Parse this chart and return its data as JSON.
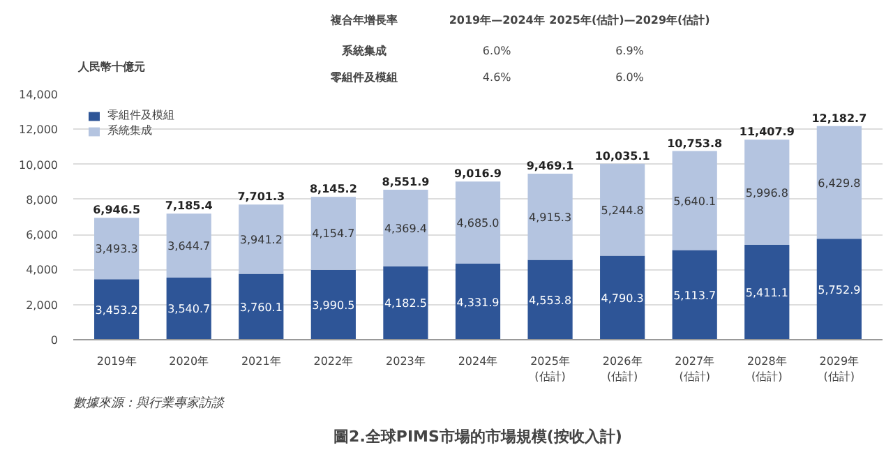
{
  "chart_data": {
    "type": "bar",
    "stacked": true,
    "title": "圖2.全球PIMS市場的市場規模(按收入計)",
    "ylabel": "人民幣十億元",
    "categories": [
      "2019年",
      "2020年",
      "2021年",
      "2022年",
      "2023年",
      "2024年",
      "2025年\n(估計)",
      "2026年\n(估計)",
      "2027年\n(估計)",
      "2028年\n(估計)",
      "2029年\n(估計)"
    ],
    "series": [
      {
        "name": "零組件及模組",
        "color": "#2e5597",
        "values": [
          3453.2,
          3540.7,
          3760.1,
          3990.5,
          4182.5,
          4331.9,
          4553.8,
          4790.3,
          5113.7,
          5411.1,
          5752.9
        ],
        "value_labels": [
          "3,453.2",
          "3,540.7",
          "3,760.1",
          "3,990.5",
          "4,182.5",
          "4,331.9",
          "4,553.8",
          "4,790.3",
          "5,113.7",
          "5,411.1",
          "5,752.9"
        ]
      },
      {
        "name": "系統集成",
        "color": "#b4c4e0",
        "values": [
          3493.3,
          3644.7,
          3941.2,
          4154.7,
          4369.4,
          4685.0,
          4915.3,
          5244.8,
          5640.1,
          5996.8,
          6429.8
        ],
        "value_labels": [
          "3,493.3",
          "3,644.7",
          "3,941.2",
          "4,154.7",
          "4,369.4",
          "4,685.0",
          "4,915.3",
          "5,244.8",
          "5,640.1",
          "5,996.8",
          "6,429.8"
        ]
      }
    ],
    "totals": [
      "6,946.5",
      "7,185.4",
      "7,701.3",
      "8,145.2",
      "8,551.9",
      "9,016.9",
      "9,469.1",
      "10,035.1",
      "10,753.8",
      "11,407.9",
      "12,182.7"
    ],
    "ylim": [
      0,
      14000
    ],
    "yticks": [
      0,
      {
        "value": 2000,
        "label": "2,000"
      },
      {
        "value": 4000,
        "label": "4,000"
      },
      {
        "value": 6000,
        "label": "6,000"
      },
      {
        "value": 8000,
        "label": "8,000"
      },
      {
        "value": 10000,
        "label": "10,000"
      },
      {
        "value": 12000,
        "label": "12,000"
      },
      {
        "value": 14000,
        "label": "14,000"
      }
    ],
    "grid": "y",
    "legend": "top left",
    "annotations": [
      "複合年增長率",
      "2019年—2024年",
      "2025年(估計)—2029年(估計)",
      "系統集成",
      "6.0%",
      "6.9%",
      "零組件及模組",
      "4.6%",
      "6.0%",
      "數據來源：與行業專家訪談"
    ]
  }
}
